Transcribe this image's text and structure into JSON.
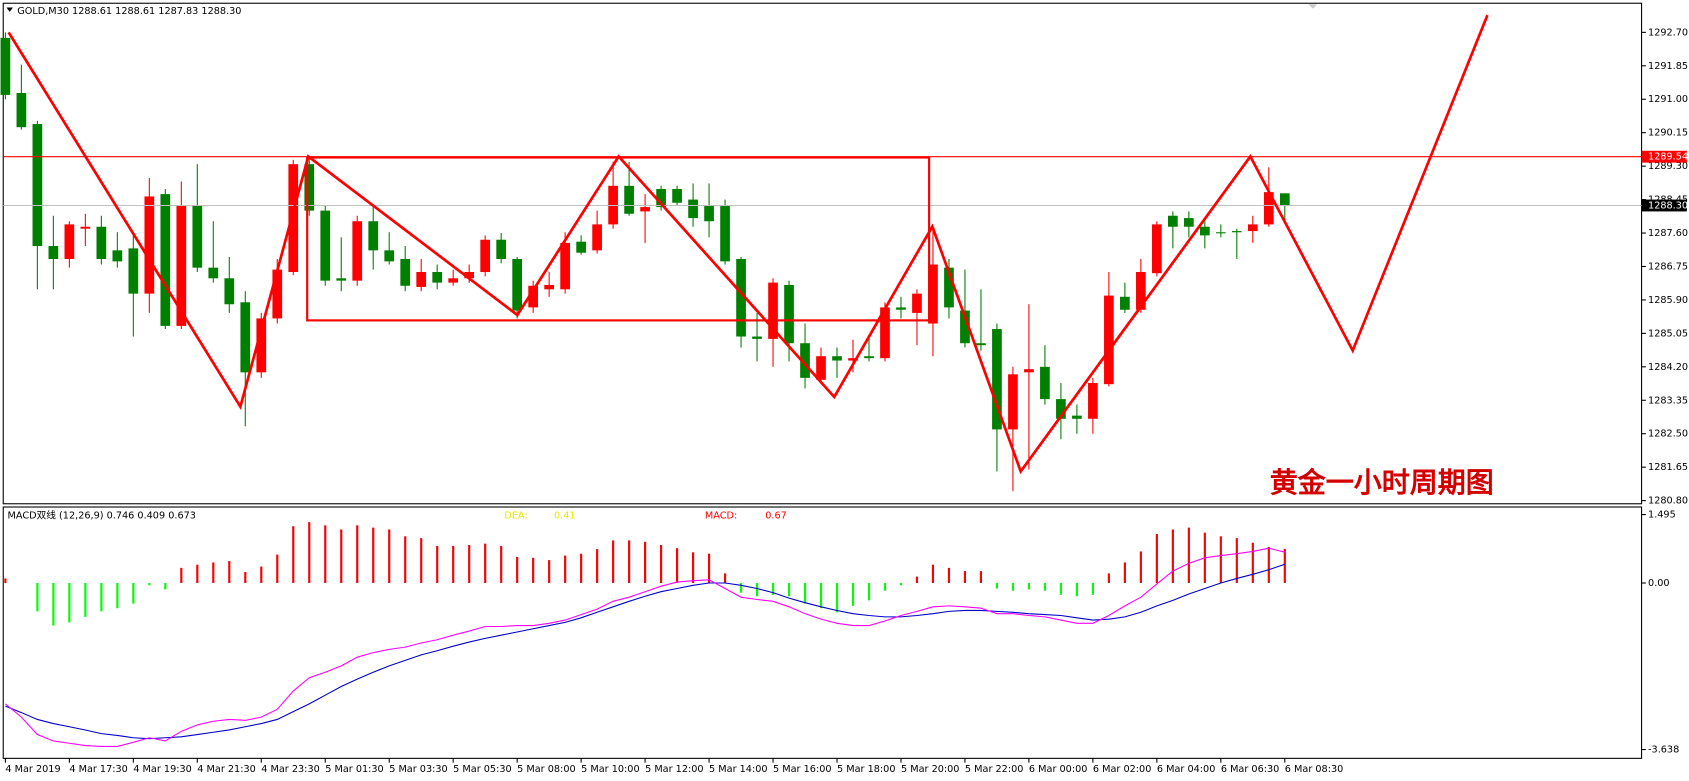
{
  "chart_data": [
    {
      "type": "candlestick",
      "title": "GOLD,M30  1288.61 1288.61 1287.83 1288.30",
      "categories": [
        "4 Mar 2019",
        null,
        null,
        null,
        "4 Mar 17:30",
        null,
        null,
        null,
        "4 Mar 19:30",
        null,
        null,
        null,
        "4 Mar 21:30",
        null,
        null,
        null,
        "4 Mar 23:30",
        null,
        null,
        null,
        "5 Mar 01:30",
        null,
        null,
        null,
        "5 Mar 03:30",
        null,
        null,
        null,
        "5 Mar 05:30",
        null,
        null,
        null,
        "5 Mar 08:00",
        null,
        null,
        null,
        "5 Mar 10:00",
        null,
        null,
        null,
        "5 Mar 12:00",
        null,
        null,
        null,
        "5 Mar 14:00",
        null,
        null,
        null,
        "5 Mar 16:00",
        null,
        null,
        null,
        "5 Mar 18:00",
        null,
        null,
        null,
        "5 Mar 20:00",
        null,
        null,
        null,
        "5 Mar 22:00",
        null,
        null,
        null,
        "6 Mar 00:00",
        null,
        null,
        null,
        "6 Mar 02:00",
        null,
        null,
        null,
        "6 Mar 04:00",
        null,
        null,
        null,
        "6 Mar 06:30",
        null,
        null,
        null,
        "6 Mar 08:30"
      ],
      "open": [
        1292.56,
        1291.16,
        1290.37,
        1287.27,
        1286.94,
        1287.71,
        1287.76,
        1287.16,
        1287.21,
        1286.06,
        1288.59,
        1285.24,
        1288.31,
        1286.72,
        1286.45,
        1285.84,
        1284.06,
        1285.43,
        1286.61,
        1289.35,
        1288.17,
        1286.45,
        1286.39,
        1287.9,
        1287.16,
        1286.94,
        1286.23,
        1286.61,
        1286.34,
        1286.45,
        1286.61,
        1287.43,
        1286.94,
        1285.71,
        1286.17,
        1286.17,
        1287.38,
        1287.16,
        1287.82,
        1288.8,
        1288.15,
        1288.72,
        1288.72,
        1288.45,
        1288.31,
        1288.31,
        1286.94,
        1284.97,
        1284.91,
        1286.28,
        1284.8,
        1283.87,
        1284.47,
        1284.36,
        1284.47,
        1284.42,
        1285.71,
        1285.57,
        1285.3,
        1286.72,
        1285.63,
        1284.8,
        1285.16,
        1282.61,
        1284.06,
        1284.2,
        1283.38,
        1282.96,
        1282.88,
        1283.76,
        1285.98,
        1285.65,
        1286.58,
        1288.04,
        1287.98,
        1287.76,
        1287.62,
        1287.65,
        1287.65,
        1287.82,
        1288.61
      ],
      "high": [
        1292.7,
        1291.88,
        1290.45,
        1288.04,
        1287.9,
        1288.09,
        1288.04,
        1287.62,
        1287.62,
        1289.0,
        1288.72,
        1288.91,
        1289.35,
        1287.9,
        1286.99,
        1286.12,
        1285.57,
        1286.94,
        1289.46,
        1289.54,
        1288.31,
        1287.49,
        1288.04,
        1288.31,
        1287.62,
        1287.27,
        1286.94,
        1286.8,
        1286.67,
        1286.8,
        1287.54,
        1287.6,
        1286.99,
        1286.39,
        1286.61,
        1287.62,
        1287.54,
        1288.17,
        1289.41,
        1289.41,
        1288.59,
        1288.8,
        1288.8,
        1288.86,
        1288.86,
        1288.45,
        1286.99,
        1285.57,
        1286.45,
        1286.39,
        1285.3,
        1284.69,
        1284.69,
        1284.89,
        1285.02,
        1285.84,
        1285.98,
        1286.17,
        1287.76,
        1286.94,
        1286.67,
        1286.17,
        1285.3,
        1284.2,
        1285.79,
        1284.75,
        1283.79,
        1283.24,
        1283.92,
        1286.61,
        1286.34,
        1286.94,
        1287.9,
        1288.15,
        1288.15,
        1287.9,
        1287.82,
        1287.71,
        1288.04,
        1289.27,
        1288.61
      ],
      "low": [
        1291.0,
        1290.23,
        1286.17,
        1286.17,
        1286.72,
        1287.27,
        1286.8,
        1286.72,
        1284.97,
        1285.57,
        1285.16,
        1285.16,
        1286.61,
        1286.34,
        1285.57,
        1282.69,
        1283.92,
        1285.3,
        1286.53,
        1288.04,
        1286.26,
        1286.12,
        1286.26,
        1286.67,
        1286.8,
        1286.12,
        1286.12,
        1286.17,
        1286.26,
        1286.34,
        1286.5,
        1286.83,
        1285.43,
        1285.57,
        1285.98,
        1286.06,
        1287.05,
        1287.08,
        1287.71,
        1288.04,
        1287.35,
        1288.17,
        1288.31,
        1287.76,
        1287.49,
        1286.8,
        1284.69,
        1284.34,
        1284.2,
        1284.34,
        1283.65,
        1283.79,
        1283.92,
        1284.06,
        1284.34,
        1284.34,
        1285.43,
        1284.75,
        1284.47,
        1285.43,
        1284.69,
        1284.61,
        1281.54,
        1281.04,
        1281.59,
        1283.24,
        1282.36,
        1282.5,
        1282.5,
        1283.7,
        1285.57,
        1285.57,
        1286.5,
        1287.21,
        1287.49,
        1287.21,
        1287.49,
        1286.94,
        1287.35,
        1287.76,
        1287.83
      ],
      "close": [
        1291.11,
        1290.29,
        1287.27,
        1286.94,
        1287.82,
        1287.76,
        1286.94,
        1286.88,
        1286.06,
        1288.53,
        1285.24,
        1288.31,
        1286.72,
        1286.45,
        1285.79,
        1284.06,
        1285.43,
        1286.67,
        1289.35,
        1288.17,
        1286.39,
        1286.39,
        1287.9,
        1287.16,
        1286.88,
        1286.26,
        1286.61,
        1286.34,
        1286.45,
        1286.61,
        1287.43,
        1286.94,
        1285.63,
        1286.26,
        1286.28,
        1287.35,
        1287.1,
        1287.82,
        1288.8,
        1288.09,
        1288.26,
        1288.26,
        1288.37,
        1287.98,
        1287.9,
        1286.88,
        1284.97,
        1284.91,
        1286.34,
        1284.8,
        1283.92,
        1284.47,
        1284.36,
        1284.42,
        1284.42,
        1285.71,
        1285.65,
        1286.06,
        1286.8,
        1285.71,
        1284.8,
        1284.75,
        1282.61,
        1284.01,
        1284.14,
        1283.38,
        1282.88,
        1282.88,
        1283.79,
        1286.01,
        1285.65,
        1286.61,
        1287.82,
        1287.76,
        1287.76,
        1287.54,
        1287.6,
        1287.62,
        1287.82,
        1288.64,
        1288.3
      ],
      "up_color": "#ff0000",
      "down_color": "#008000",
      "ylim": [
        1280.72,
        1293.44
      ],
      "yticks": [
        {
          "value": 1292.7,
          "label": "1292.70"
        },
        1291.85,
        {
          "value": 1291,
          "label": "1291.00"
        },
        1290.15,
        {
          "value": 1289.3,
          "label": "1289.30"
        },
        1288.45,
        {
          "value": 1287.6,
          "label": "1287.60"
        },
        1286.75,
        {
          "value": 1285.9,
          "label": "1285.90"
        },
        1285.05,
        {
          "value": 1284.2,
          "label": "1284.20"
        },
        1283.35,
        {
          "value": 1282.5,
          "label": "1282.50"
        },
        1281.65,
        {
          "value": 1280.8,
          "label": "1280.80"
        }
      ],
      "price_lines": [
        {
          "value": 1289.54,
          "color": "#ff0000"
        },
        {
          "value": 1288.3,
          "label": "1288.30",
          "color": "#000000",
          "line_color": "#c0c0c0"
        }
      ],
      "annotation": "黄金一小时周期图"
    },
    {
      "type": "macd",
      "title": "MACD双线 (12,26,9) 0.746 0.409 0.673",
      "histogram": {
        "values": [
          0.1,
          0,
          -0.62,
          -0.93,
          -0.86,
          -0.74,
          -0.62,
          -0.55,
          -0.45,
          -0.05,
          -0.14,
          0.33,
          0.4,
          0.45,
          0.48,
          0.24,
          0.36,
          0.62,
          1.24,
          1.33,
          1.26,
          1.17,
          1.26,
          1.21,
          1.17,
          1.02,
          0.98,
          0.81,
          0.81,
          0.83,
          0.86,
          0.81,
          0.57,
          0.55,
          0.5,
          0.6,
          0.64,
          0.74,
          0.93,
          0.93,
          0.9,
          0.83,
          0.76,
          0.67,
          0.64,
          0.21,
          -0.21,
          -0.29,
          -0.26,
          -0.29,
          -0.45,
          -0.55,
          -0.64,
          -0.5,
          -0.38,
          -0.17,
          -0.05,
          0.14,
          0.4,
          0.33,
          0.26,
          0.26,
          -0.12,
          -0.17,
          -0.14,
          -0.17,
          -0.26,
          -0.29,
          -0.26,
          0.21,
          0.45,
          0.69,
          1.07,
          1.17,
          1.21,
          1.1,
          1.02,
          0.98,
          0.88,
          0.79,
          0.746
        ],
        "up_color": "#ff0000",
        "down_color": "#00ff00"
      },
      "series": [
        {
          "name": "DEA:",
          "value_label": "0.41",
          "color": "#0000cd",
          "label_color": "#e8e800",
          "values": [
            -2.69,
            -2.83,
            -2.98,
            -3.07,
            -3.14,
            -3.21,
            -3.29,
            -3.33,
            -3.38,
            -3.4,
            -3.38,
            -3.36,
            -3.31,
            -3.26,
            -3.21,
            -3.14,
            -3.07,
            -2.98,
            -2.81,
            -2.64,
            -2.45,
            -2.26,
            -2.1,
            -1.95,
            -1.81,
            -1.69,
            -1.57,
            -1.48,
            -1.38,
            -1.29,
            -1.21,
            -1.14,
            -1.07,
            -1.0,
            -0.93,
            -0.86,
            -0.76,
            -0.64,
            -0.52,
            -0.4,
            -0.29,
            -0.19,
            -0.12,
            -0.05,
            0,
            0,
            -0.05,
            -0.12,
            -0.21,
            -0.33,
            -0.43,
            -0.52,
            -0.6,
            -0.67,
            -0.71,
            -0.74,
            -0.74,
            -0.71,
            -0.67,
            -0.62,
            -0.6,
            -0.6,
            -0.62,
            -0.64,
            -0.67,
            -0.69,
            -0.71,
            -0.76,
            -0.81,
            -0.79,
            -0.74,
            -0.64,
            -0.5,
            -0.38,
            -0.24,
            -0.12,
            0,
            0.1,
            0.19,
            0.29,
            0.409
          ]
        },
        {
          "name": "MACD:",
          "value_label": "0.67",
          "color": "#ff00ff",
          "label_color": "#ff0000",
          "values": [
            -2.64,
            -2.93,
            -3.31,
            -3.45,
            -3.5,
            -3.55,
            -3.57,
            -3.57,
            -3.48,
            -3.38,
            -3.45,
            -3.24,
            -3.1,
            -3.02,
            -2.98,
            -3.0,
            -2.93,
            -2.76,
            -2.36,
            -2.07,
            -1.95,
            -1.81,
            -1.62,
            -1.52,
            -1.45,
            -1.4,
            -1.31,
            -1.24,
            -1.14,
            -1.05,
            -0.95,
            -0.95,
            -0.93,
            -0.93,
            -0.88,
            -0.81,
            -0.69,
            -0.57,
            -0.4,
            -0.31,
            -0.19,
            -0.07,
            0.02,
            0.05,
            0.07,
            -0.12,
            -0.31,
            -0.36,
            -0.4,
            -0.52,
            -0.67,
            -0.79,
            -0.88,
            -0.93,
            -0.93,
            -0.83,
            -0.71,
            -0.62,
            -0.52,
            -0.5,
            -0.52,
            -0.55,
            -0.67,
            -0.67,
            -0.71,
            -0.74,
            -0.81,
            -0.88,
            -0.88,
            -0.71,
            -0.5,
            -0.31,
            -0.02,
            0.26,
            0.43,
            0.55,
            0.6,
            0.64,
            0.69,
            0.76,
            0.673
          ]
        }
      ],
      "ylim": [
        -3.83,
        1.66
      ],
      "yticks": [
        1.495,
        {
          "value": 0,
          "label": "0.00"
        },
        -3.638
      ]
    }
  ]
}
